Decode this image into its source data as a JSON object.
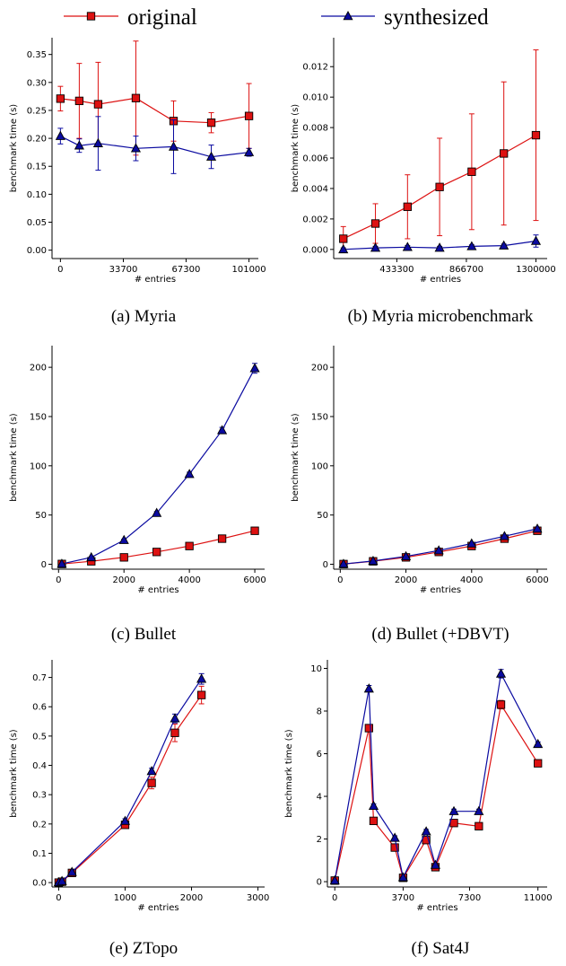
{
  "legend": {
    "items": [
      {
        "label": "original",
        "color": "#dd1111",
        "marker": "square"
      },
      {
        "label": "synthesized",
        "color": "#0a0aa0",
        "marker": "triangle"
      }
    ]
  },
  "chart_data": [
    {
      "type": "line",
      "caption": "(a) Myria",
      "xlabel": "# entries",
      "ylabel": "benchmark time (s)",
      "xlim": [
        -4500,
        106000
      ],
      "ylim": [
        -0.015,
        0.38
      ],
      "xticks": [
        0,
        33700,
        67300,
        101000
      ],
      "xtick_labels": [
        "0",
        "33700",
        "67300",
        "101000"
      ],
      "yticks": [
        0.0,
        0.05,
        0.1,
        0.15,
        0.2,
        0.25,
        0.3,
        0.35
      ],
      "ytick_labels": [
        "0.00",
        "0.05",
        "0.10",
        "0.15",
        "0.20",
        "0.25",
        "0.30",
        "0.35"
      ],
      "series": [
        {
          "name": "original",
          "x": [
            0,
            10100,
            20200,
            40400,
            60600,
            80800,
            101000
          ],
          "y": [
            0.271,
            0.267,
            0.261,
            0.272,
            0.231,
            0.228,
            0.24
          ],
          "err": [
            0.022,
            0.067,
            0.075,
            0.102,
            0.036,
            0.018,
            0.058
          ]
        },
        {
          "name": "synthesized",
          "x": [
            0,
            10100,
            20200,
            40400,
            60600,
            80800,
            101000
          ],
          "y": [
            0.204,
            0.187,
            0.191,
            0.182,
            0.185,
            0.167,
            0.175
          ],
          "err": [
            0.014,
            0.012,
            0.048,
            0.022,
            0.048,
            0.021,
            0.007
          ]
        }
      ]
    },
    {
      "type": "line",
      "caption": "(b) Myria microbenchmark",
      "xlabel": "# entries",
      "ylabel": "benchmark time (s)",
      "xlim": [
        40000,
        1370000
      ],
      "ylim": [
        -0.0006,
        0.0139
      ],
      "xticks": [
        433300,
        866700,
        1300000
      ],
      "xtick_labels": [
        "433300",
        "866700",
        "1300000"
      ],
      "yticks": [
        0.0,
        0.002,
        0.004,
        0.006,
        0.008,
        0.01,
        0.012
      ],
      "ytick_labels": [
        "0.000",
        "0.002",
        "0.004",
        "0.006",
        "0.008",
        "0.010",
        "0.012"
      ],
      "series": [
        {
          "name": "original",
          "x": [
            100000,
            300000,
            500000,
            700000,
            900000,
            1100000,
            1300000
          ],
          "y": [
            0.0007,
            0.0017,
            0.0028,
            0.0041,
            0.0051,
            0.0063,
            0.0075
          ],
          "err": [
            0.0008,
            0.0013,
            0.0021,
            0.0032,
            0.0038,
            0.0047,
            0.0056
          ]
        },
        {
          "name": "synthesized",
          "x": [
            100000,
            300000,
            500000,
            700000,
            900000,
            1100000,
            1300000
          ],
          "y": [
            0.0,
            0.0001,
            0.00015,
            0.0001,
            0.0002,
            0.00025,
            0.00055
          ],
          "err": [
            0.0001,
            0.0001,
            0.0001,
            0.0001,
            0.0001,
            0.0001,
            0.0004
          ]
        }
      ]
    },
    {
      "type": "line",
      "caption": "(c) Bullet",
      "xlabel": "# entries",
      "ylabel": "benchmark time (s)",
      "xlim": [
        -200,
        6300
      ],
      "ylim": [
        -5,
        222
      ],
      "xticks": [
        0,
        2000,
        4000,
        6000
      ],
      "xtick_labels": [
        "0",
        "2000",
        "4000",
        "6000"
      ],
      "yticks": [
        0,
        50,
        100,
        150,
        200
      ],
      "ytick_labels": [
        "0",
        "50",
        "100",
        "150",
        "200"
      ],
      "series": [
        {
          "name": "original",
          "x": [
            100,
            1000,
            2000,
            3000,
            4000,
            5000,
            6000
          ],
          "y": [
            0.3,
            3.0,
            7.0,
            12.5,
            18.5,
            26.0,
            34.0
          ],
          "err": [
            0,
            0,
            0,
            0,
            0,
            0,
            0
          ]
        },
        {
          "name": "synthesized",
          "x": [
            100,
            1000,
            2000,
            3000,
            4000,
            5000,
            6000
          ],
          "y": [
            0.4,
            7.0,
            24.5,
            52.0,
            91.5,
            136.0,
            199.0
          ],
          "err": [
            0,
            0.5,
            1.0,
            1.5,
            2.0,
            3.0,
            5.0
          ]
        }
      ]
    },
    {
      "type": "line",
      "caption": "(d) Bullet (+DBVT)",
      "xlabel": "# entries",
      "ylabel": "benchmark time (s)",
      "xlim": [
        -200,
        6300
      ],
      "ylim": [
        -5,
        222
      ],
      "xticks": [
        0,
        2000,
        4000,
        6000
      ],
      "xtick_labels": [
        "0",
        "2000",
        "4000",
        "6000"
      ],
      "yticks": [
        0,
        50,
        100,
        150,
        200
      ],
      "ytick_labels": [
        "0",
        "50",
        "100",
        "150",
        "200"
      ],
      "series": [
        {
          "name": "original",
          "x": [
            100,
            1000,
            2000,
            3000,
            4000,
            5000,
            6000
          ],
          "y": [
            0.2,
            3.0,
            7.0,
            12.5,
            18.5,
            26.0,
            34.0
          ],
          "err": [
            0,
            0,
            0,
            0,
            0,
            0,
            0
          ]
        },
        {
          "name": "synthesized",
          "x": [
            100,
            1000,
            2000,
            3000,
            4000,
            5000,
            6000
          ],
          "y": [
            0.3,
            3.3,
            8.0,
            14.0,
            21.0,
            28.5,
            36.0
          ],
          "err": [
            0,
            0,
            0,
            0,
            0,
            0,
            0
          ]
        }
      ]
    },
    {
      "type": "line",
      "caption": "(e) ZTopo",
      "xlabel": "# entries",
      "ylabel": "benchmark time (s)",
      "xlim": [
        -100,
        3100
      ],
      "ylim": [
        -0.015,
        0.76
      ],
      "xticks": [
        0,
        1000,
        2000,
        3000
      ],
      "xtick_labels": [
        "0",
        "1000",
        "2000",
        "3000"
      ],
      "yticks": [
        0.0,
        0.1,
        0.2,
        0.3,
        0.4,
        0.5,
        0.6,
        0.7
      ],
      "ytick_labels": [
        "0.0",
        "0.1",
        "0.2",
        "0.3",
        "0.4",
        "0.5",
        "0.6",
        "0.7"
      ],
      "series": [
        {
          "name": "original",
          "x": [
            0,
            50,
            200,
            1000,
            1400,
            1750,
            2150
          ],
          "y": [
            0.0,
            0.003,
            0.033,
            0.197,
            0.34,
            0.511,
            0.64
          ],
          "err": [
            0,
            0,
            0.003,
            0.008,
            0.02,
            0.03,
            0.03
          ]
        },
        {
          "name": "synthesized",
          "x": [
            0,
            50,
            200,
            1000,
            1400,
            1750,
            2150
          ],
          "y": [
            0.001,
            0.005,
            0.036,
            0.21,
            0.38,
            0.56,
            0.695
          ],
          "err": [
            0,
            0,
            0.003,
            0.008,
            0.01,
            0.015,
            0.018
          ]
        }
      ]
    },
    {
      "type": "line",
      "caption": "(f) Sat4J",
      "xlabel": "# entries",
      "ylabel": "benchmark time (s)",
      "xlim": [
        -400,
        11500
      ],
      "ylim": [
        -0.25,
        10.4
      ],
      "xticks": [
        0,
        3700,
        7300,
        11000
      ],
      "xtick_labels": [
        "0",
        "3700",
        "7300",
        "11000"
      ],
      "yticks": [
        0,
        2,
        4,
        6,
        8,
        10
      ],
      "ytick_labels": [
        "0",
        "2",
        "4",
        "6",
        "8",
        "10"
      ],
      "series": [
        {
          "name": "original",
          "x": [
            0,
            1850,
            2100,
            3250,
            3700,
            4950,
            5450,
            6450,
            7800,
            9000,
            11000
          ],
          "y": [
            0.05,
            7.2,
            2.85,
            1.6,
            0.18,
            1.95,
            0.68,
            2.75,
            2.6,
            8.3,
            5.55
          ],
          "err": [
            0,
            0.15,
            0.1,
            0.1,
            0.05,
            0.1,
            0.05,
            0.1,
            0.1,
            0.2,
            0.1
          ]
        },
        {
          "name": "synthesized",
          "x": [
            0,
            1850,
            2100,
            3250,
            3700,
            4950,
            5450,
            6450,
            7800,
            9000,
            11000
          ],
          "y": [
            0.05,
            9.05,
            3.55,
            2.05,
            0.2,
            2.35,
            0.78,
            3.3,
            3.3,
            9.75,
            6.45
          ],
          "err": [
            0,
            0.15,
            0.1,
            0.1,
            0.05,
            0.1,
            0.05,
            0.1,
            0.1,
            0.2,
            0.1
          ]
        }
      ]
    }
  ]
}
